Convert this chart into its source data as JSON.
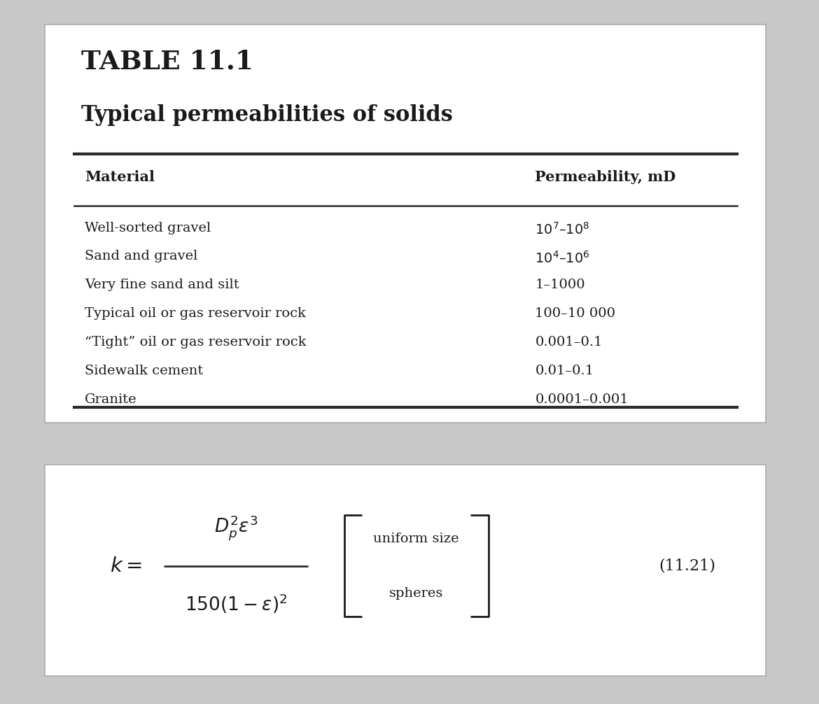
{
  "table_number": "TABLE 11.1",
  "table_subtitle": "Typical permeabilities of solids",
  "col1_header": "Material",
  "col2_header": "Permeability, mD",
  "rows": [
    [
      "Well-sorted gravel",
      "$10^7$–$10^8$"
    ],
    [
      "Sand and gravel",
      "$10^4$–$10^6$"
    ],
    [
      "Very fine sand and silt",
      "1–1000"
    ],
    [
      "Typical oil or gas reservoir rock",
      "100–10 000"
    ],
    [
      "“Tight” oil or gas reservoir rock",
      "0.001–0.1"
    ],
    [
      "Sidewalk cement",
      "0.01–0.1"
    ],
    [
      "Granite",
      "0.0001–0.001"
    ]
  ],
  "equation_label": "(11.21)",
  "background_color": "#ffffff",
  "text_color": "#1a1a1a",
  "line_color": "#2a2a2a",
  "outer_bg": "#c8c8c8"
}
